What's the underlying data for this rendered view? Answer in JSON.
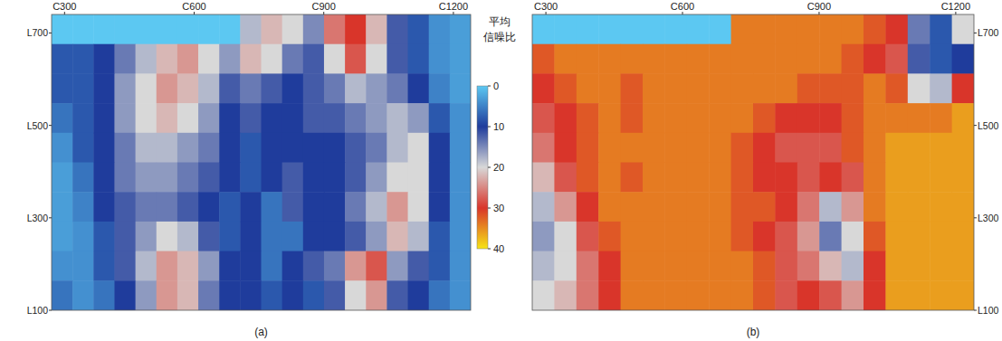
{
  "chart_data": [
    {
      "type": "heatmap",
      "title": "(a)",
      "xlim": [
        270,
        1240
      ],
      "ylim": [
        100,
        740
      ],
      "xticks": [
        {
          "value": 300,
          "label": "C300"
        },
        {
          "value": 600,
          "label": "C600"
        },
        {
          "value": 900,
          "label": "C900"
        },
        {
          "value": 1200,
          "label": "C1200"
        }
      ],
      "yticks": [
        {
          "value": 100,
          "label": "L100"
        },
        {
          "value": 300,
          "label": "L300"
        },
        {
          "value": 500,
          "label": "L500"
        },
        {
          "value": 700,
          "label": "L700"
        }
      ],
      "cells": [
        [
          0,
          0,
          0,
          0,
          0,
          0,
          0,
          0,
          0,
          18,
          22,
          20,
          15,
          26,
          30,
          22,
          12,
          8,
          4,
          3
        ],
        [
          8,
          8,
          10,
          14,
          18,
          22,
          24,
          20,
          16,
          22,
          20,
          14,
          12,
          20,
          28,
          20,
          12,
          8,
          4,
          3
        ],
        [
          8,
          8,
          10,
          16,
          20,
          24,
          22,
          18,
          12,
          14,
          12,
          10,
          12,
          14,
          18,
          16,
          14,
          10,
          5,
          3
        ],
        [
          6,
          8,
          10,
          16,
          20,
          22,
          20,
          16,
          10,
          12,
          10,
          10,
          12,
          12,
          14,
          16,
          18,
          16,
          8,
          4
        ],
        [
          4,
          8,
          10,
          14,
          18,
          18,
          16,
          14,
          10,
          8,
          10,
          10,
          10,
          10,
          12,
          14,
          18,
          20,
          10,
          4
        ],
        [
          3,
          6,
          10,
          14,
          16,
          16,
          14,
          12,
          10,
          8,
          10,
          12,
          10,
          10,
          12,
          16,
          20,
          20,
          10,
          4
        ],
        [
          3,
          5,
          10,
          12,
          14,
          14,
          12,
          10,
          8,
          10,
          6,
          12,
          10,
          10,
          14,
          18,
          24,
          20,
          10,
          4
        ],
        [
          3,
          4,
          8,
          12,
          16,
          20,
          18,
          12,
          8,
          10,
          6,
          6,
          10,
          10,
          12,
          16,
          22,
          18,
          8,
          4
        ],
        [
          4,
          4,
          8,
          12,
          18,
          24,
          22,
          16,
          10,
          10,
          6,
          10,
          12,
          14,
          24,
          28,
          16,
          12,
          8,
          4
        ],
        [
          6,
          4,
          6,
          10,
          16,
          24,
          22,
          14,
          10,
          10,
          8,
          10,
          8,
          12,
          20,
          24,
          12,
          10,
          6,
          4
        ]
      ],
      "colorbar": {
        "label": [
          "平均",
          "信噪比"
        ],
        "range": [
          0,
          40
        ],
        "ticks": [
          0,
          10,
          20,
          30,
          40
        ]
      }
    },
    {
      "type": "heatmap",
      "title": "(b)",
      "xlim": [
        270,
        1240
      ],
      "ylim": [
        100,
        740
      ],
      "xticks": [
        {
          "value": 300,
          "label": "C300"
        },
        {
          "value": 600,
          "label": "C600"
        },
        {
          "value": 900,
          "label": "C900"
        },
        {
          "value": 1200,
          "label": "C1200"
        }
      ],
      "yticks": [
        {
          "value": 100,
          "label": "L100"
        },
        {
          "value": 300,
          "label": "L300"
        },
        {
          "value": 500,
          "label": "L500"
        },
        {
          "value": 700,
          "label": "L700"
        }
      ],
      "cells": [
        [
          0,
          0,
          0,
          0,
          0,
          0,
          0,
          0,
          0,
          34,
          34,
          34,
          34,
          34,
          34,
          32,
          30,
          14,
          8,
          20
        ],
        [
          32,
          34,
          34,
          34,
          34,
          34,
          34,
          34,
          34,
          34,
          34,
          34,
          34,
          34,
          32,
          30,
          28,
          12,
          8,
          10
        ],
        [
          30,
          32,
          34,
          34,
          32,
          34,
          34,
          34,
          34,
          34,
          34,
          34,
          32,
          32,
          32,
          34,
          32,
          20,
          18,
          30
        ],
        [
          28,
          30,
          32,
          34,
          32,
          34,
          34,
          34,
          34,
          34,
          32,
          30,
          30,
          30,
          32,
          34,
          34,
          34,
          34,
          36
        ],
        [
          26,
          30,
          32,
          34,
          34,
          34,
          34,
          34,
          34,
          32,
          30,
          28,
          28,
          28,
          32,
          34,
          36,
          36,
          36,
          36
        ],
        [
          22,
          28,
          32,
          34,
          32,
          34,
          34,
          34,
          34,
          32,
          30,
          30,
          28,
          30,
          28,
          34,
          36,
          36,
          36,
          36
        ],
        [
          18,
          24,
          30,
          34,
          34,
          34,
          34,
          34,
          34,
          32,
          32,
          30,
          26,
          18,
          24,
          34,
          36,
          36,
          36,
          36
        ],
        [
          16,
          20,
          28,
          32,
          34,
          34,
          34,
          34,
          34,
          32,
          30,
          28,
          24,
          14,
          20,
          32,
          36,
          36,
          36,
          36
        ],
        [
          18,
          20,
          26,
          30,
          34,
          34,
          34,
          34,
          34,
          34,
          32,
          28,
          26,
          22,
          18,
          30,
          36,
          36,
          36,
          36
        ],
        [
          20,
          22,
          26,
          30,
          34,
          34,
          34,
          34,
          34,
          34,
          32,
          28,
          30,
          28,
          24,
          30,
          36,
          36,
          36,
          36
        ]
      ]
    }
  ]
}
